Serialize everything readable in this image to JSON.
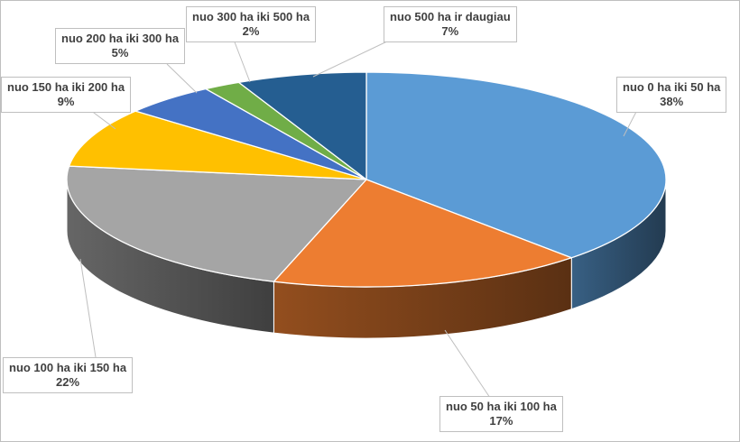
{
  "chart_data": {
    "type": "pie",
    "title": "",
    "categories": [
      "nuo 0 ha iki 50 ha",
      "nuo 50 ha iki 100 ha",
      "nuo 100 ha iki 150 ha",
      "nuo 150 ha iki 200 ha",
      "nuo 200 ha iki 300 ha",
      "nuo 300 ha iki 500 ha",
      "nuo 500 ha ir daugiau"
    ],
    "values": [
      38,
      17,
      22,
      9,
      5,
      2,
      7
    ],
    "value_labels": [
      "38%",
      "17%",
      "22%",
      "9%",
      "5%",
      "2%",
      "7%"
    ],
    "unit": "%",
    "colors": [
      "#5b9bd5",
      "#ed7d31",
      "#a5a5a5",
      "#ffc000",
      "#4472c4",
      "#70ad47",
      "#255e91"
    ],
    "style": "3d",
    "legend": "none"
  }
}
